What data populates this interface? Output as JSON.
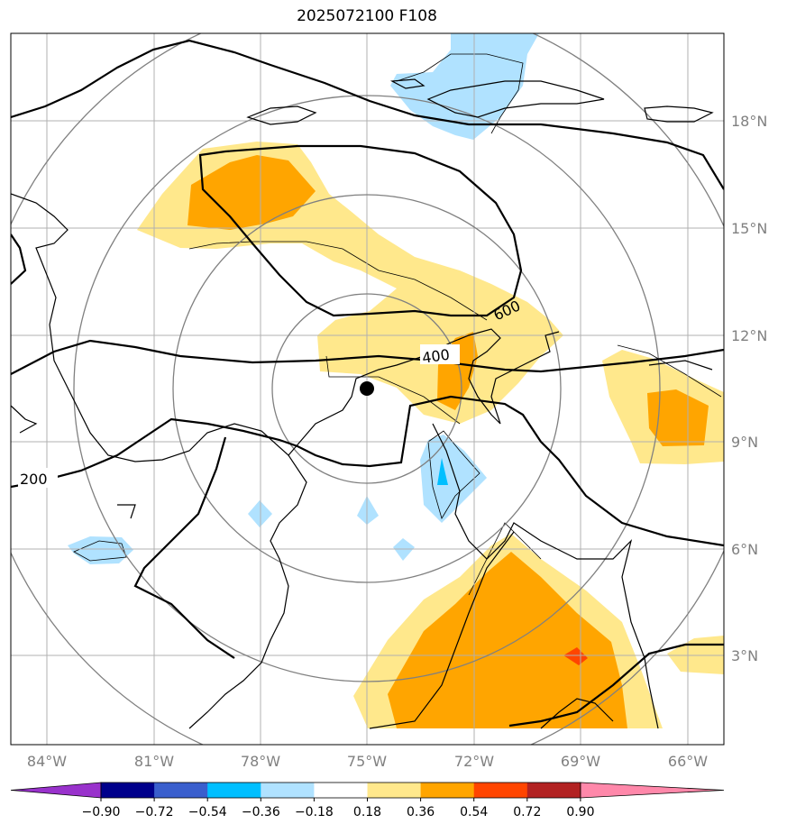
{
  "title": "2025072100 F108",
  "map": {
    "lon_labels": [
      "84°W",
      "81°W",
      "78°W",
      "75°W",
      "72°W",
      "69°W",
      "66°W"
    ],
    "lat_labels": [
      "18°N",
      "15°N",
      "12°N",
      "9°N",
      "6°N",
      "3°N"
    ],
    "center_marker": {
      "lon": -75,
      "lat": 10.5
    }
  },
  "contour_labels": {
    "c200": "200",
    "c400": "400",
    "c600": "600"
  },
  "colorbar": {
    "ticks": [
      "−0.90",
      "−0.72",
      "−0.54",
      "−0.36",
      "−0.18",
      "0.18",
      "0.36",
      "0.54",
      "0.72",
      "0.90"
    ],
    "colors": [
      "#9932CC",
      "#00008B",
      "#3A5FCD",
      "#00BFFF",
      "#B0E2FF",
      "#FFFFFF",
      "#FFE88C",
      "#FFA500",
      "#FF4500",
      "#B22222",
      "#FF88AA"
    ]
  }
}
